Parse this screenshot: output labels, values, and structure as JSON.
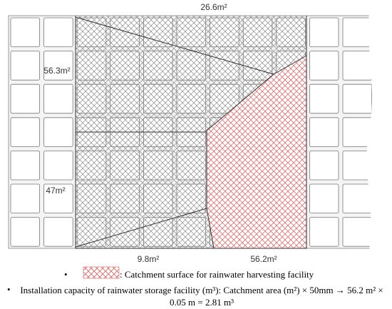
{
  "labels": {
    "top": "26.6m²",
    "upper_left": "56.3m²",
    "lower_left": "47m²",
    "bottom_left": "9.8m²",
    "bottom_right": "56.2m²"
  },
  "legend": {
    "text": ": Catchment surface for rainwater harvesting facility"
  },
  "note": {
    "text": "Installation capacity of rainwater storage facility (m³): Catchment area (m²) × 50mm → 56.2 m² × 0.05 m = 2.81 m³"
  }
}
